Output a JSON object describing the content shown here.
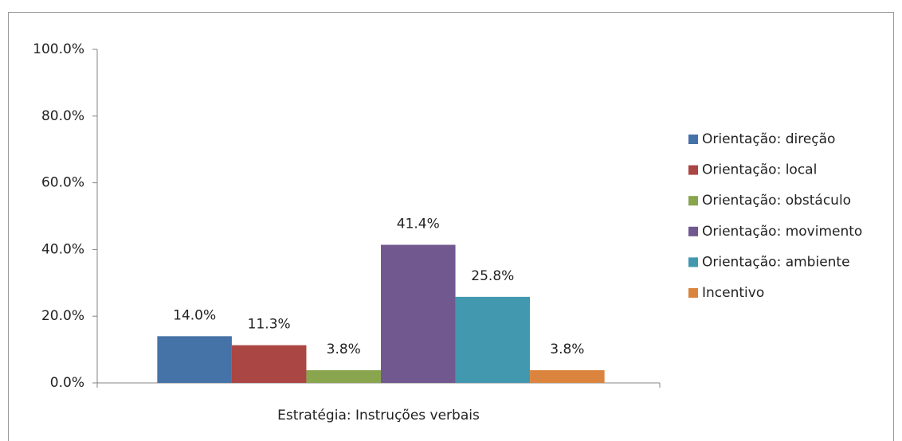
{
  "chart_data": {
    "type": "bar",
    "categories": [
      "Estratégia: Instruções verbais"
    ],
    "series": [
      {
        "name": "Orientação: direção",
        "color": "#4572a7",
        "values": [
          14.0
        ],
        "value_labels": [
          "14.0%"
        ]
      },
      {
        "name": "Orientação: local",
        "color": "#aa4643",
        "values": [
          11.3
        ],
        "value_labels": [
          "11.3%"
        ]
      },
      {
        "name": "Orientação: obstáculo",
        "color": "#89a54e",
        "values": [
          3.8
        ],
        "value_labels": [
          "3.8%"
        ]
      },
      {
        "name": "Orientação: movimento",
        "color": "#71588f",
        "values": [
          41.4
        ],
        "value_labels": [
          "41.4%"
        ]
      },
      {
        "name": "Orientação: ambiente",
        "color": "#4198af",
        "values": [
          25.8
        ],
        "value_labels": [
          "25.8%"
        ]
      },
      {
        "name": "Incentivo",
        "color": "#db843d",
        "values": [
          3.8
        ],
        "value_labels": [
          "3.8%"
        ]
      }
    ],
    "ylim": [
      0,
      100
    ],
    "yticks": [
      {
        "value": 0,
        "label": "0.0%"
      },
      {
        "value": 20,
        "label": "20.0%"
      },
      {
        "value": 40,
        "label": "40.0%"
      },
      {
        "value": 60,
        "label": "60.0%"
      },
      {
        "value": 80,
        "label": "80.0%"
      },
      {
        "value": 100,
        "label": "100.0%"
      }
    ],
    "grid": false,
    "legend": "right"
  }
}
